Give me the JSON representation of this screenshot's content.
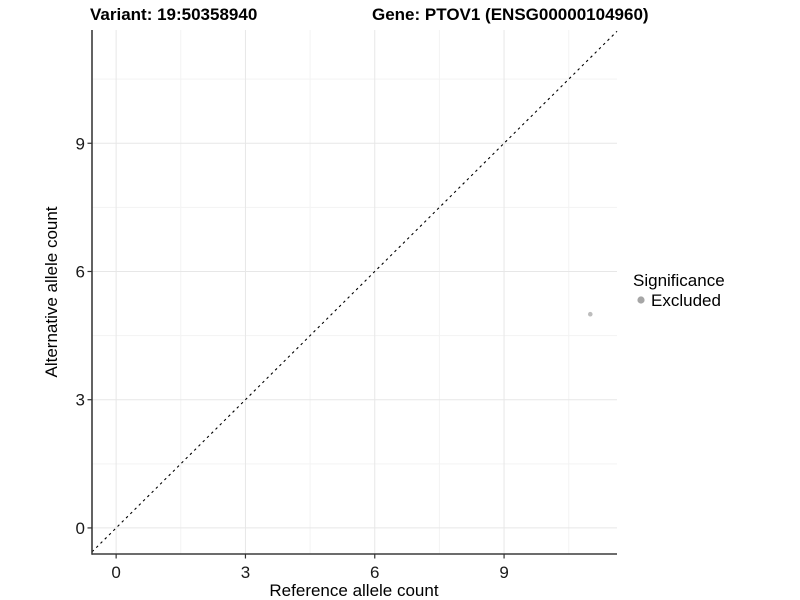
{
  "header": {
    "variant_title": "Variant: 19:50358940",
    "gene_title": "Gene: PTOV1 (ENSG00000104960)"
  },
  "chart_data": {
    "type": "scatter",
    "title_left": "Variant: 19:50358940",
    "title_right": "Gene: PTOV1 (ENSG00000104960)",
    "xlabel": "Reference allele count",
    "ylabel": "Alternative allele count",
    "xlim": [
      -0.56,
      11.62
    ],
    "ylim": [
      -0.61,
      11.65
    ],
    "x_ticks": [
      0,
      3,
      6,
      9
    ],
    "y_ticks": [
      0,
      3,
      6,
      9
    ],
    "x_minor": [
      1.5,
      4.5,
      7.5,
      10.5
    ],
    "y_minor": [
      1.5,
      4.5,
      7.5,
      10.5
    ],
    "grid": "major and minor gridlines, white panel, axis lines left+bottom only",
    "identity_line": {
      "equation": "y = x",
      "style": "dashed",
      "color": "#000000"
    },
    "series": [
      {
        "name": "Excluded",
        "points": [
          {
            "x": 11,
            "y": 5
          }
        ]
      }
    ],
    "legend": {
      "title": "Significance",
      "position": "right",
      "entries": [
        "Excluded"
      ]
    }
  },
  "colors": {
    "point": "#bdbdbd",
    "legend_point": "#a6a6a6",
    "grid_major": "#e7e7e7",
    "grid_minor": "#f3f3f3",
    "axis_line": "#3c3c3c",
    "tick_mark": "#333333",
    "dashed_line": "#000000",
    "text": "#000000"
  }
}
